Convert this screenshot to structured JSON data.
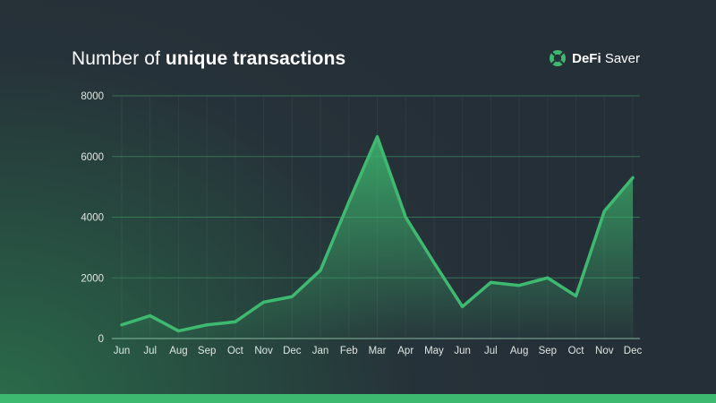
{
  "title": {
    "prefix": "Number of",
    "emphasis": "unique transactions"
  },
  "brand": {
    "name_bold": "DeFi",
    "name_regular": "Saver",
    "color": "#3dba6f"
  },
  "colors": {
    "line": "#3dba6f",
    "grid": "#3a8a5e",
    "axis": "#8fc7a6"
  },
  "chart_data": {
    "type": "area",
    "title": "Number of unique transactions",
    "xlabel": "",
    "ylabel": "",
    "categories": [
      "Jun",
      "Jul",
      "Aug",
      "Sep",
      "Oct",
      "Nov",
      "Dec",
      "Jan",
      "Feb",
      "Mar",
      "Apr",
      "May",
      "Jun",
      "Jul",
      "Aug",
      "Sep",
      "Oct",
      "Nov",
      "Dec"
    ],
    "values": [
      450,
      750,
      250,
      450,
      550,
      1200,
      1380,
      2250,
      4500,
      6650,
      4000,
      2500,
      1050,
      1850,
      1750,
      2000,
      1400,
      4200,
      5300
    ],
    "ylim": [
      0,
      8000
    ],
    "yticks": [
      "0",
      "2000",
      "4000",
      "6000",
      "8000"
    ],
    "grid": true
  }
}
